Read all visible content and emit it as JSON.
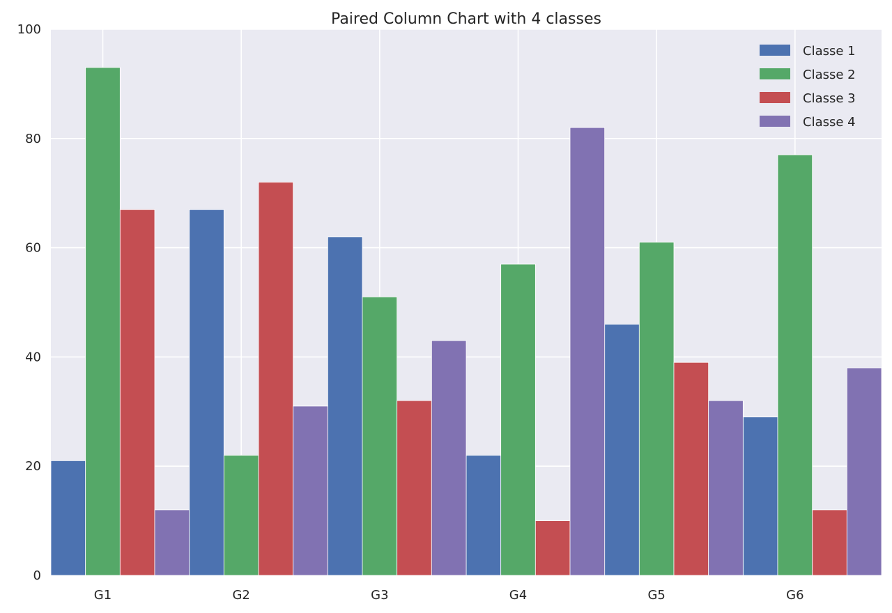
{
  "chart_data": {
    "type": "bar",
    "title": "Paired Column Chart with 4 classes",
    "xlabel": "",
    "ylabel": "",
    "categories": [
      "G1",
      "G2",
      "G3",
      "G4",
      "G5",
      "G6"
    ],
    "ylim": [
      0,
      100
    ],
    "yticks": [
      "0",
      "20",
      "40",
      "60",
      "80",
      "100"
    ],
    "grid": true,
    "legend_position": "top-right",
    "series": [
      {
        "name": "Classe 1",
        "color": "#4c72b0",
        "values": [
          21,
          67,
          62,
          22,
          46,
          29
        ]
      },
      {
        "name": "Classe 2",
        "color": "#55a868",
        "values": [
          93,
          22,
          51,
          57,
          61,
          77
        ]
      },
      {
        "name": "Classe 3",
        "color": "#c44e52",
        "values": [
          67,
          72,
          32,
          10,
          39,
          12
        ]
      },
      {
        "name": "Classe 4",
        "color": "#8172b2",
        "values": [
          12,
          31,
          43,
          82,
          32,
          38
        ]
      }
    ]
  }
}
